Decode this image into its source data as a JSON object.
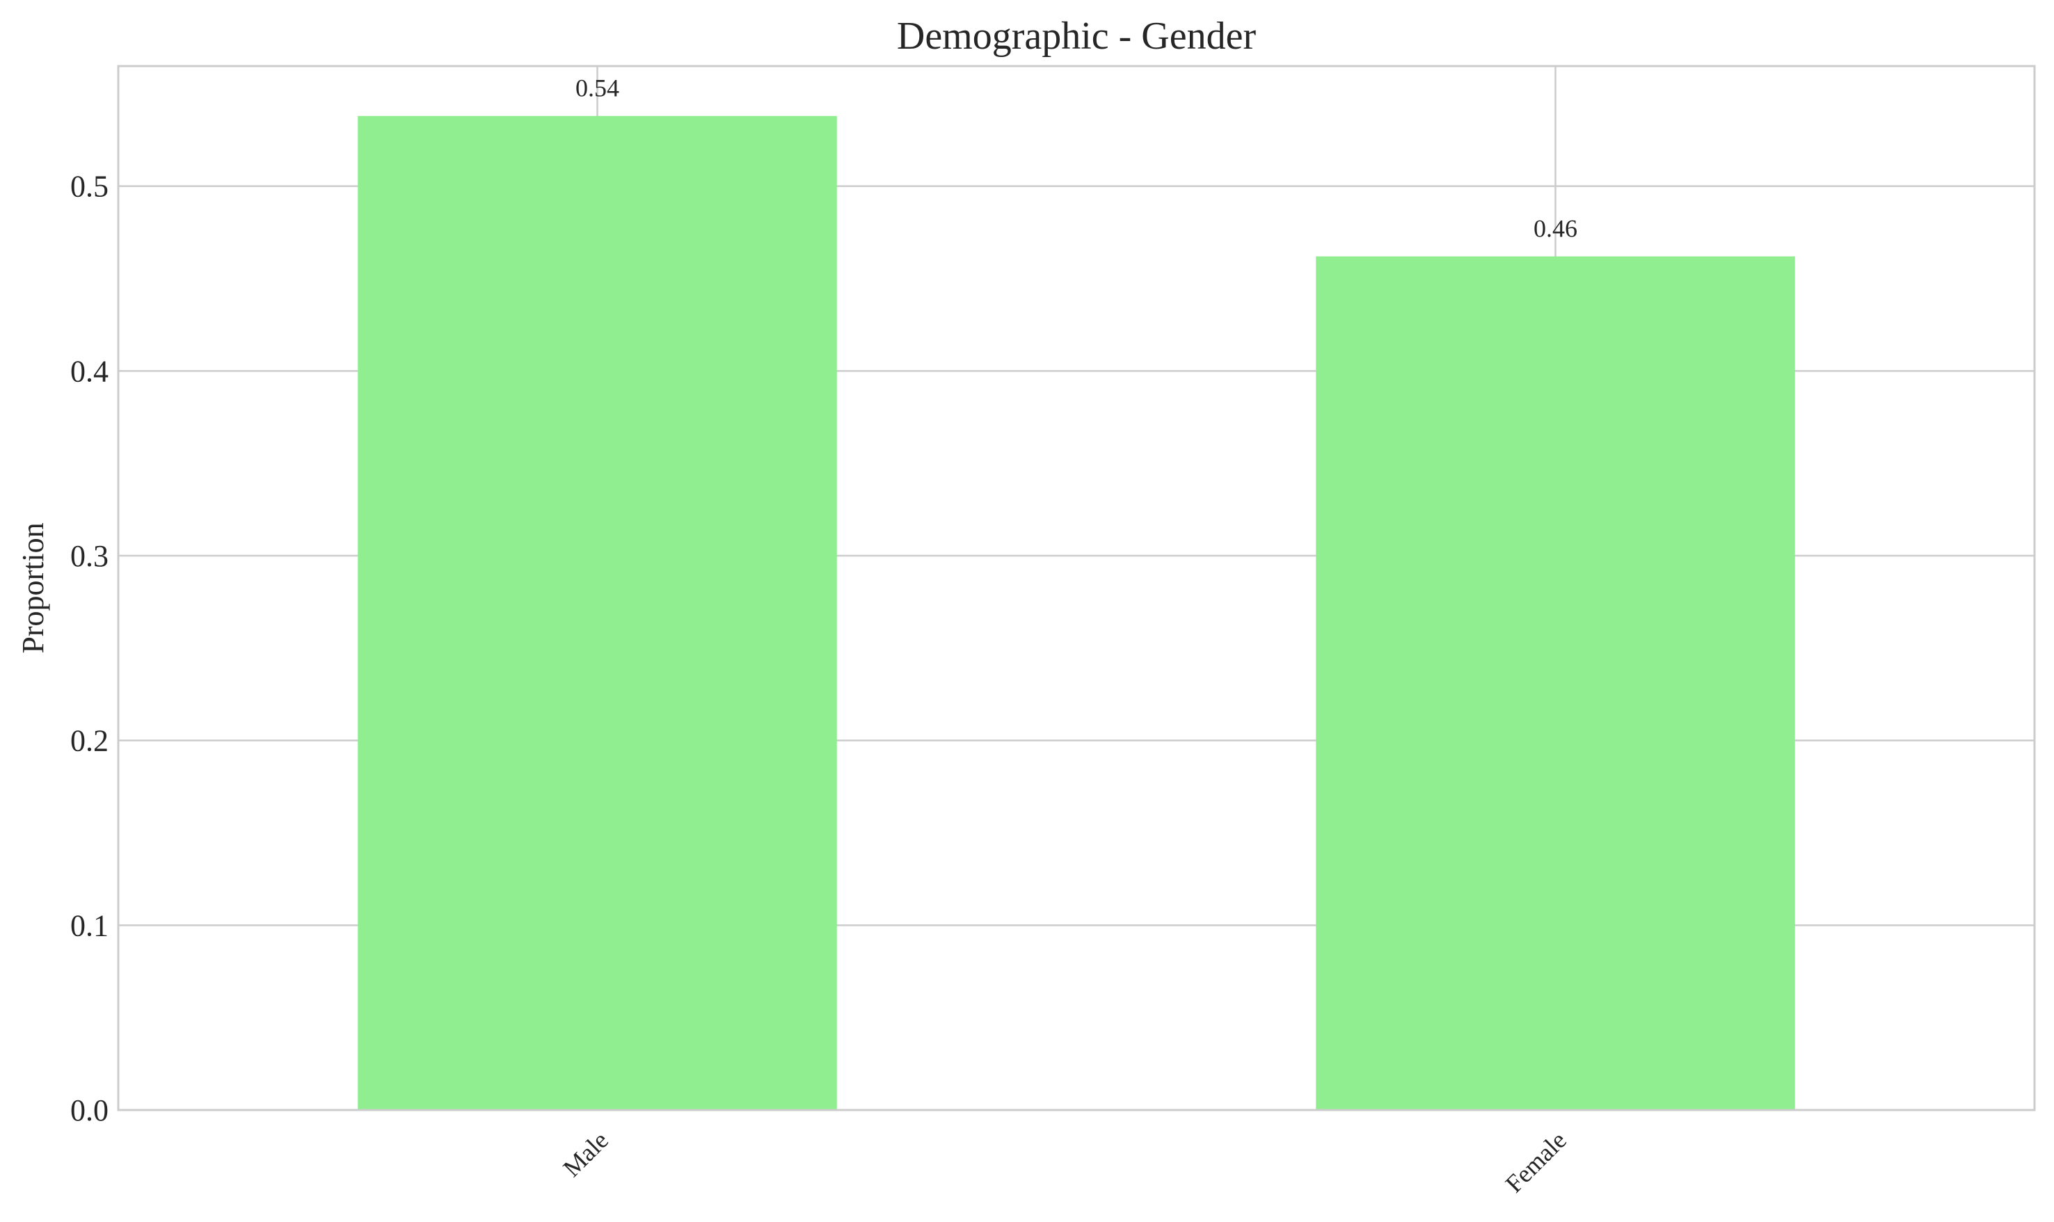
{
  "chart_data": {
    "type": "bar",
    "title": "Demographic - Gender",
    "xlabel": "",
    "ylabel": "Proportion",
    "categories": [
      "Male",
      "Female"
    ],
    "values": [
      0.538,
      0.462
    ],
    "data_labels": [
      "0.54",
      "0.46"
    ],
    "ylim": [
      0,
      0.565
    ],
    "yticks": [
      0.0,
      0.1,
      0.2,
      0.3,
      0.4,
      0.5
    ],
    "ytick_labels": [
      "0.0",
      "0.1",
      "0.2",
      "0.3",
      "0.4",
      "0.5"
    ],
    "grid": true,
    "legend": "none",
    "colors": {
      "bar": "#90ee90",
      "grid": "#cccccc",
      "axes_border": "#cccccc",
      "text": "#262626"
    }
  }
}
